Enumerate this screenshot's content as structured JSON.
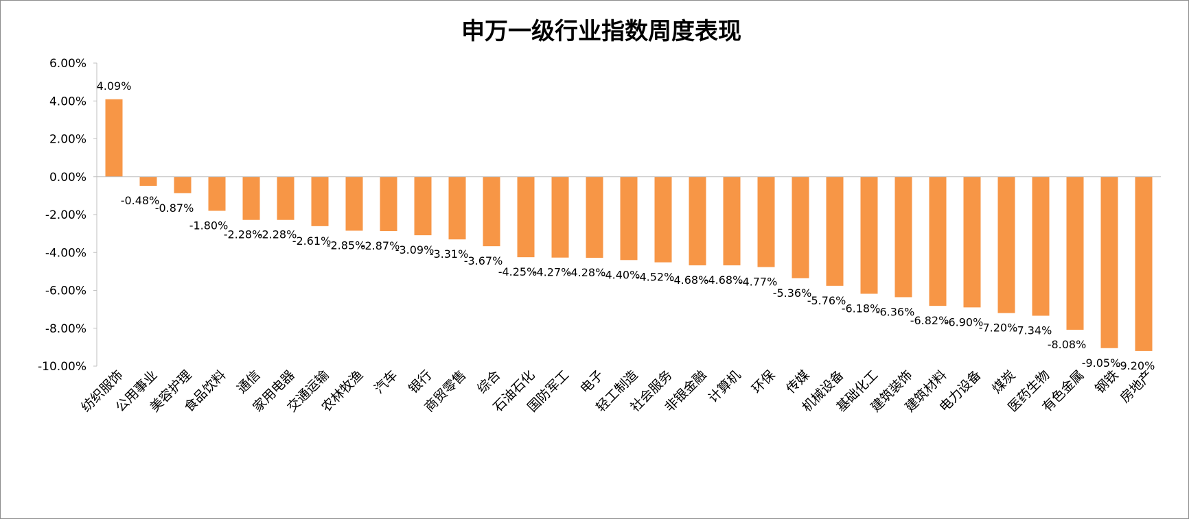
{
  "chart_data": {
    "type": "bar",
    "title": "申万一级行业指数周度表现",
    "xlabel": "",
    "ylabel": "",
    "ylim": [
      -10,
      6
    ],
    "y_ticks": [
      6,
      4,
      2,
      0,
      -2,
      -4,
      -6,
      -8,
      -10
    ],
    "y_tick_labels": [
      "6.00%",
      "4.00%",
      "2.00%",
      "0.00%",
      "-2.00%",
      "-4.00%",
      "-6.00%",
      "-8.00%",
      "-10.00%"
    ],
    "grid": false,
    "legend": "none",
    "bar_color": "#F79646",
    "categories": [
      "纺织服饰",
      "公用事业",
      "美容护理",
      "食品饮料",
      "通信",
      "家用电器",
      "交通运输",
      "农林牧渔",
      "汽车",
      "银行",
      "商贸零售",
      "综合",
      "石油石化",
      "国防军工",
      "电子",
      "轻工制造",
      "社会服务",
      "非银金融",
      "计算机",
      "环保",
      "传媒",
      "机械设备",
      "基础化工",
      "建筑装饰",
      "建筑材料",
      "电力设备",
      "煤炭",
      "医药生物",
      "有色金属",
      "钢铁",
      "房地产"
    ],
    "values": [
      4.09,
      -0.48,
      -0.87,
      -1.8,
      -2.28,
      -2.28,
      -2.61,
      -2.85,
      -2.87,
      -3.09,
      -3.31,
      -3.67,
      -4.25,
      -4.27,
      -4.28,
      -4.4,
      -4.52,
      -4.68,
      -4.68,
      -4.77,
      -5.36,
      -5.76,
      -6.18,
      -6.36,
      -6.82,
      -6.9,
      -7.2,
      -7.34,
      -8.08,
      -9.05,
      -9.2
    ],
    "value_labels": [
      "4.09%",
      "-0.48%",
      "-0.87%",
      "-1.80%",
      "-2.28%",
      "-2.28%",
      "-2.61%",
      "-2.85%",
      "-2.87%",
      "-3.09%",
      "-3.31%",
      "-3.67%",
      "-4.25%",
      "-4.27%",
      "-4.28%",
      "-4.40%",
      "-4.52%",
      "-4.68%",
      "-4.68%",
      "-4.77%",
      "-5.36%",
      "-5.76%",
      "-6.18%",
      "-6.36%",
      "-6.82%",
      "-6.90%",
      "-7.20%",
      "-7.34%",
      "-8.08%",
      "-9.05%",
      "-9.20%"
    ]
  }
}
